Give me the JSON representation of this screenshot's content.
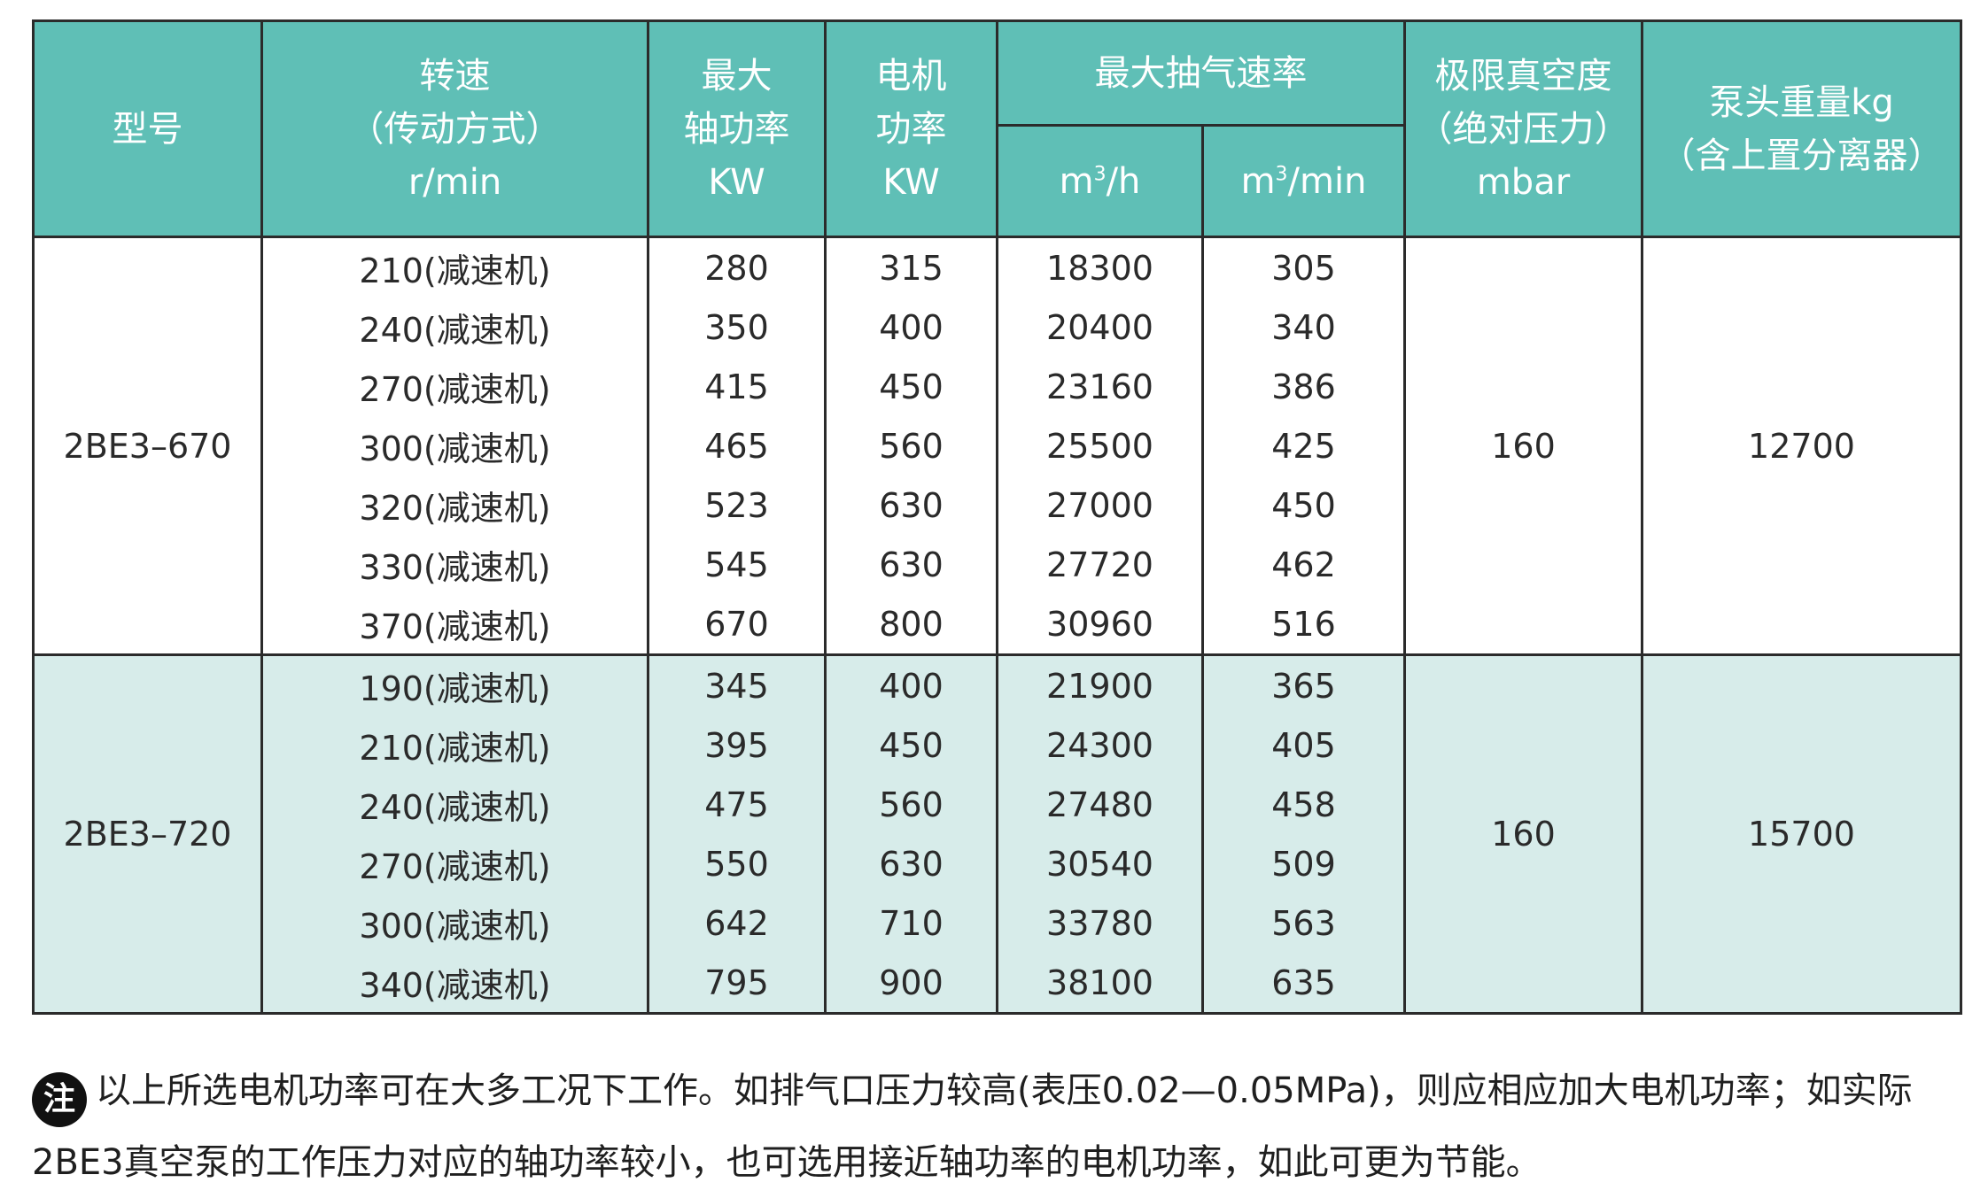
{
  "header": {
    "model": "型号",
    "speed": [
      "转速",
      "（传动方式）",
      "r/min"
    ],
    "max_shaft_power": [
      "最大",
      "轴功率",
      "KW"
    ],
    "motor_power": [
      "电机",
      "功率",
      "KW"
    ],
    "max_pump_rate": "最大抽气速率",
    "rate_h": {
      "base": "m",
      "sup": "3",
      "rest": "/h"
    },
    "rate_min": {
      "base": "m",
      "sup": "3",
      "rest": "/min"
    },
    "ultimate_vacuum": [
      "极限真空度",
      "（绝对压力）",
      "mbar"
    ],
    "pump_weight": [
      "泵头重量kg",
      "（含上置分离器）"
    ]
  },
  "groups": [
    {
      "model": "2BE3–670",
      "vacuum": "160",
      "weight": "12700",
      "rows": [
        {
          "speed": "210(减速机)",
          "shaft": "280",
          "motor": "315",
          "m3h": "18300",
          "m3min": "305"
        },
        {
          "speed": "240(减速机)",
          "shaft": "350",
          "motor": "400",
          "m3h": "20400",
          "m3min": "340"
        },
        {
          "speed": "270(减速机)",
          "shaft": "415",
          "motor": "450",
          "m3h": "23160",
          "m3min": "386"
        },
        {
          "speed": "300(减速机)",
          "shaft": "465",
          "motor": "560",
          "m3h": "25500",
          "m3min": "425"
        },
        {
          "speed": "320(减速机)",
          "shaft": "523",
          "motor": "630",
          "m3h": "27000",
          "m3min": "450"
        },
        {
          "speed": "330(减速机)",
          "shaft": "545",
          "motor": "630",
          "m3h": "27720",
          "m3min": "462"
        },
        {
          "speed": "370(减速机)",
          "shaft": "670",
          "motor": "800",
          "m3h": "30960",
          "m3min": "516"
        }
      ]
    },
    {
      "model": "2BE3–720",
      "vacuum": "160",
      "weight": "15700",
      "rows": [
        {
          "speed": "190(减速机)",
          "shaft": "345",
          "motor": "400",
          "m3h": "21900",
          "m3min": "365"
        },
        {
          "speed": "210(减速机)",
          "shaft": "395",
          "motor": "450",
          "m3h": "24300",
          "m3min": "405"
        },
        {
          "speed": "240(减速机)",
          "shaft": "475",
          "motor": "560",
          "m3h": "27480",
          "m3min": "458"
        },
        {
          "speed": "270(减速机)",
          "shaft": "550",
          "motor": "630",
          "m3h": "30540",
          "m3min": "509"
        },
        {
          "speed": "300(减速机)",
          "shaft": "642",
          "motor": "710",
          "m3h": "33780",
          "m3min": "563"
        },
        {
          "speed": "340(减速机)",
          "shaft": "795",
          "motor": "900",
          "m3h": "38100",
          "m3min": "635"
        }
      ]
    }
  ],
  "note": {
    "icon": "注",
    "text": "以上所选电机功率可在大多工况下工作。如排气口压力较高(表压0.02—0.05MPa)，则应相应加大电机功率；如实际2BE3真空泵的工作压力对应的轴功率较小，也可选用接近轴功率的电机功率，如此可更为节能。"
  }
}
